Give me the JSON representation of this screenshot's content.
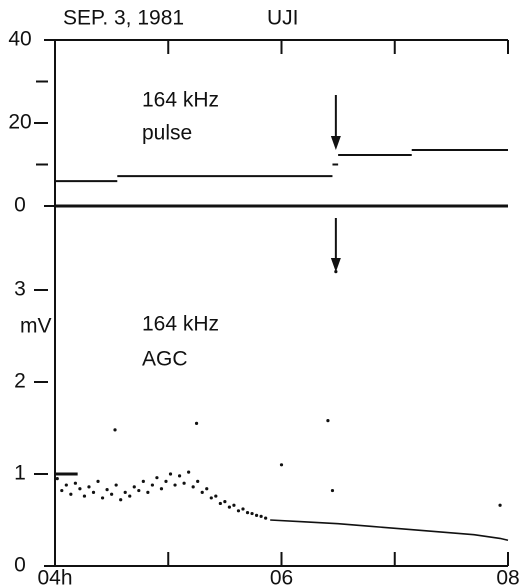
{
  "chart_data": [
    {
      "type": "step",
      "annotations": [
        "SEP. 3, 1981",
        "UJI",
        "164 kHz",
        "pulse"
      ],
      "xlim": [
        4,
        8
      ],
      "ylim": [
        0,
        40
      ],
      "yticks": [
        0,
        20,
        40
      ],
      "yminor_ticks": [
        10,
        30
      ],
      "color": "#111",
      "x0": [
        4.0,
        4.55,
        6.45,
        6.5,
        7.15
      ],
      "x1": [
        4.55,
        6.45,
        6.5,
        7.15,
        8.0
      ],
      "values": [
        6,
        7.2,
        10,
        12.3,
        13.5
      ],
      "arrow_x": 6.48
    },
    {
      "type": "scatter",
      "annotations": [
        "164 kHz",
        "AGC"
      ],
      "ylabel": "mV",
      "xlim": [
        4,
        8
      ],
      "xticks": [
        {
          "value": 4,
          "label": "04h"
        },
        {
          "value": 6,
          "label": "06"
        },
        {
          "value": 8,
          "label": "08"
        }
      ],
      "xminor_ticks": [
        5,
        7
      ],
      "ylim": [
        0,
        3
      ],
      "yticks": [
        0,
        1,
        2,
        3
      ],
      "color": "#111",
      "x": [
        4.02,
        4.06,
        4.1,
        4.14,
        4.18,
        4.22,
        4.26,
        4.3,
        4.34,
        4.38,
        4.42,
        4.46,
        4.5,
        4.54,
        4.58,
        4.62,
        4.66,
        4.7,
        4.74,
        4.78,
        4.82,
        4.86,
        4.9,
        4.94,
        4.98,
        5.02,
        5.06,
        5.1,
        5.14,
        5.18,
        5.22,
        5.26,
        5.3,
        5.34,
        5.38,
        5.42,
        5.46,
        5.5,
        5.54,
        5.58,
        5.62,
        5.66,
        5.7,
        5.74,
        5.78,
        5.82,
        5.86,
        4.53,
        5.25,
        6.0,
        6.41,
        6.48,
        7.93,
        6.45
      ],
      "values": [
        0.95,
        0.82,
        0.88,
        0.78,
        0.9,
        0.84,
        0.76,
        0.86,
        0.8,
        0.92,
        0.74,
        0.83,
        0.78,
        0.88,
        0.72,
        0.8,
        0.76,
        0.86,
        0.82,
        0.92,
        0.8,
        0.88,
        0.96,
        0.84,
        0.92,
        1.0,
        0.88,
        0.98,
        0.9,
        1.02,
        0.86,
        0.92,
        0.8,
        0.84,
        0.74,
        0.76,
        0.68,
        0.7,
        0.64,
        0.66,
        0.6,
        0.62,
        0.58,
        0.57,
        0.55,
        0.54,
        0.52,
        1.48,
        1.55,
        1.1,
        1.58,
        3.2,
        0.66,
        0.82
      ],
      "lines": [
        {
          "x": [
            4.0,
            4.2
          ],
          "values": [
            1.0,
            1.0
          ]
        },
        {
          "x": [
            5.9,
            6.2,
            6.5,
            6.8,
            7.1,
            7.4,
            7.7,
            7.93,
            8.0
          ],
          "values": [
            0.5,
            0.48,
            0.46,
            0.43,
            0.4,
            0.37,
            0.34,
            0.3,
            0.28
          ]
        }
      ]
    }
  ]
}
